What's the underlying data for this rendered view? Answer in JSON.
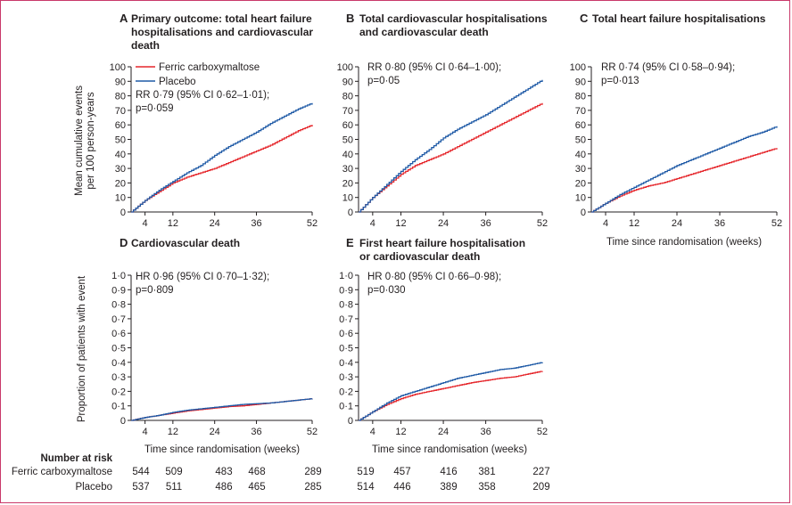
{
  "colors": {
    "ferric": "#e5262b",
    "placebo": "#1f5aa6",
    "border": "#c9396a",
    "axis": "#231f20"
  },
  "legend": {
    "ferric": "Ferric carboxymaltose",
    "placebo": "Placebo"
  },
  "axes": {
    "y_label_cumulative_1": "Mean cumulative events",
    "y_label_cumulative_2": "per 100 person-years",
    "y_label_proportion": "Proportion of patients with event",
    "x_label": "Time since randomisation (weeks)",
    "x_ticks": [
      "4",
      "12",
      "24",
      "36",
      "52"
    ]
  },
  "risk_table": {
    "title": "Number at risk",
    "rows": [
      {
        "label": "Ferric carboxymaltose",
        "left": [
          "544",
          "509",
          "483",
          "468",
          "289"
        ],
        "right": [
          "519",
          "457",
          "416",
          "381",
          "227"
        ]
      },
      {
        "label": "Placebo",
        "left": [
          "537",
          "511",
          "486",
          "465",
          "285"
        ],
        "right": [
          "514",
          "446",
          "389",
          "358",
          "209"
        ]
      }
    ]
  },
  "chart_data": [
    {
      "type": "line",
      "panel": "A",
      "title_lines": [
        "Primary outcome: total heart failure",
        "hospitalisations and cardiovascular",
        "death"
      ],
      "stat_lines": [
        "RR 0·79 (95% CI 0·62–1·01);",
        "p=0·059"
      ],
      "xlim": [
        0,
        52
      ],
      "ylim": [
        0,
        100
      ],
      "y_ticks": [
        "0",
        "10",
        "20",
        "30",
        "40",
        "50",
        "60",
        "70",
        "80",
        "90",
        "100"
      ],
      "series": [
        {
          "name": "Ferric carboxymaltose",
          "x": [
            0,
            4,
            8,
            12,
            16,
            20,
            24,
            28,
            32,
            36,
            40,
            44,
            48,
            52
          ],
          "y": [
            0,
            8,
            14,
            20,
            24,
            27,
            30,
            34,
            38,
            42,
            46,
            51,
            56,
            60
          ]
        },
        {
          "name": "Placebo",
          "x": [
            0,
            4,
            8,
            12,
            16,
            20,
            24,
            28,
            32,
            36,
            40,
            44,
            48,
            52
          ],
          "y": [
            0,
            8,
            15,
            21,
            27,
            32,
            39,
            45,
            50,
            55,
            61,
            66,
            71,
            75
          ]
        }
      ]
    },
    {
      "type": "line",
      "panel": "B",
      "title_lines": [
        "Total cardiovascular hospitalisations",
        "and cardiovascular death"
      ],
      "stat_lines": [
        "RR 0·80 (95% CI 0·64–1·00);",
        "p=0·05"
      ],
      "xlim": [
        0,
        52
      ],
      "ylim": [
        0,
        100
      ],
      "y_ticks": [
        "0",
        "10",
        "20",
        "30",
        "40",
        "50",
        "60",
        "70",
        "80",
        "90",
        "100"
      ],
      "series": [
        {
          "name": "Ferric carboxymaltose",
          "x": [
            0,
            4,
            8,
            12,
            16,
            20,
            24,
            28,
            32,
            36,
            40,
            44,
            48,
            52
          ],
          "y": [
            0,
            10,
            18,
            26,
            32,
            36,
            40,
            45,
            50,
            55,
            60,
            65,
            70,
            75
          ]
        },
        {
          "name": "Placebo",
          "x": [
            0,
            4,
            8,
            12,
            16,
            20,
            24,
            28,
            32,
            36,
            40,
            44,
            48,
            52
          ],
          "y": [
            0,
            10,
            19,
            28,
            36,
            43,
            51,
            57,
            62,
            67,
            73,
            79,
            85,
            91
          ]
        }
      ]
    },
    {
      "type": "line",
      "panel": "C",
      "title_lines": [
        "Total heart failure hospitalisations"
      ],
      "stat_lines": [
        "RR 0·74 (95% CI 0·58–0·94);",
        "p=0·013"
      ],
      "xlim": [
        0,
        52
      ],
      "ylim": [
        0,
        100
      ],
      "y_ticks": [
        "0",
        "10",
        "20",
        "30",
        "40",
        "50",
        "60",
        "70",
        "80",
        "90",
        "100"
      ],
      "series": [
        {
          "name": "Ferric carboxymaltose",
          "x": [
            0,
            4,
            8,
            12,
            16,
            20,
            24,
            28,
            32,
            36,
            40,
            44,
            48,
            52
          ],
          "y": [
            0,
            6,
            11,
            15,
            18,
            20,
            23,
            26,
            29,
            32,
            35,
            38,
            41,
            44
          ]
        },
        {
          "name": "Placebo",
          "x": [
            0,
            4,
            8,
            12,
            16,
            20,
            24,
            28,
            32,
            36,
            40,
            44,
            48,
            52
          ],
          "y": [
            0,
            6,
            12,
            17,
            22,
            27,
            32,
            36,
            40,
            44,
            48,
            52,
            55,
            59
          ]
        }
      ]
    },
    {
      "type": "line",
      "panel": "D",
      "title_lines": [
        "Cardiovascular death"
      ],
      "stat_lines": [
        "HR 0·96 (95% CI 0·70–1·32);",
        "p=0·809"
      ],
      "xlim": [
        0,
        52
      ],
      "ylim": [
        0,
        1
      ],
      "y_ticks": [
        "0",
        "0·1",
        "0·2",
        "0·3",
        "0·4",
        "0·5",
        "0·6",
        "0·7",
        "0·8",
        "0·9",
        "1·0"
      ],
      "series": [
        {
          "name": "Ferric carboxymaltose",
          "x": [
            0,
            4,
            8,
            12,
            16,
            20,
            24,
            28,
            32,
            36,
            40,
            44,
            48,
            52
          ],
          "y": [
            0,
            0.02,
            0.035,
            0.05,
            0.065,
            0.075,
            0.085,
            0.095,
            0.1,
            0.11,
            0.12,
            0.13,
            0.14,
            0.15
          ]
        },
        {
          "name": "Placebo",
          "x": [
            0,
            4,
            8,
            12,
            16,
            20,
            24,
            28,
            32,
            36,
            40,
            44,
            48,
            52
          ],
          "y": [
            0,
            0.02,
            0.035,
            0.055,
            0.07,
            0.08,
            0.09,
            0.1,
            0.11,
            0.115,
            0.12,
            0.13,
            0.14,
            0.15
          ]
        }
      ]
    },
    {
      "type": "line",
      "panel": "E",
      "title_lines": [
        "First heart failure hospitalisation",
        "or cardiovascular death"
      ],
      "stat_lines": [
        "HR 0·80 (95% CI 0·66–0·98);",
        "p=0·030"
      ],
      "xlim": [
        0,
        52
      ],
      "ylim": [
        0,
        1
      ],
      "y_ticks": [
        "0",
        "0·1",
        "0·2",
        "0·3",
        "0·4",
        "0·5",
        "0·6",
        "0·7",
        "0·8",
        "0·9",
        "1·0"
      ],
      "series": [
        {
          "name": "Ferric carboxymaltose",
          "x": [
            0,
            4,
            8,
            12,
            16,
            20,
            24,
            28,
            32,
            36,
            40,
            44,
            48,
            52
          ],
          "y": [
            0,
            0.06,
            0.11,
            0.15,
            0.18,
            0.2,
            0.22,
            0.24,
            0.26,
            0.275,
            0.29,
            0.3,
            0.32,
            0.34
          ]
        },
        {
          "name": "Placebo",
          "x": [
            0,
            4,
            8,
            12,
            16,
            20,
            24,
            28,
            32,
            36,
            40,
            44,
            48,
            52
          ],
          "y": [
            0,
            0.06,
            0.12,
            0.17,
            0.2,
            0.23,
            0.26,
            0.29,
            0.31,
            0.33,
            0.35,
            0.36,
            0.38,
            0.4
          ]
        }
      ]
    }
  ]
}
